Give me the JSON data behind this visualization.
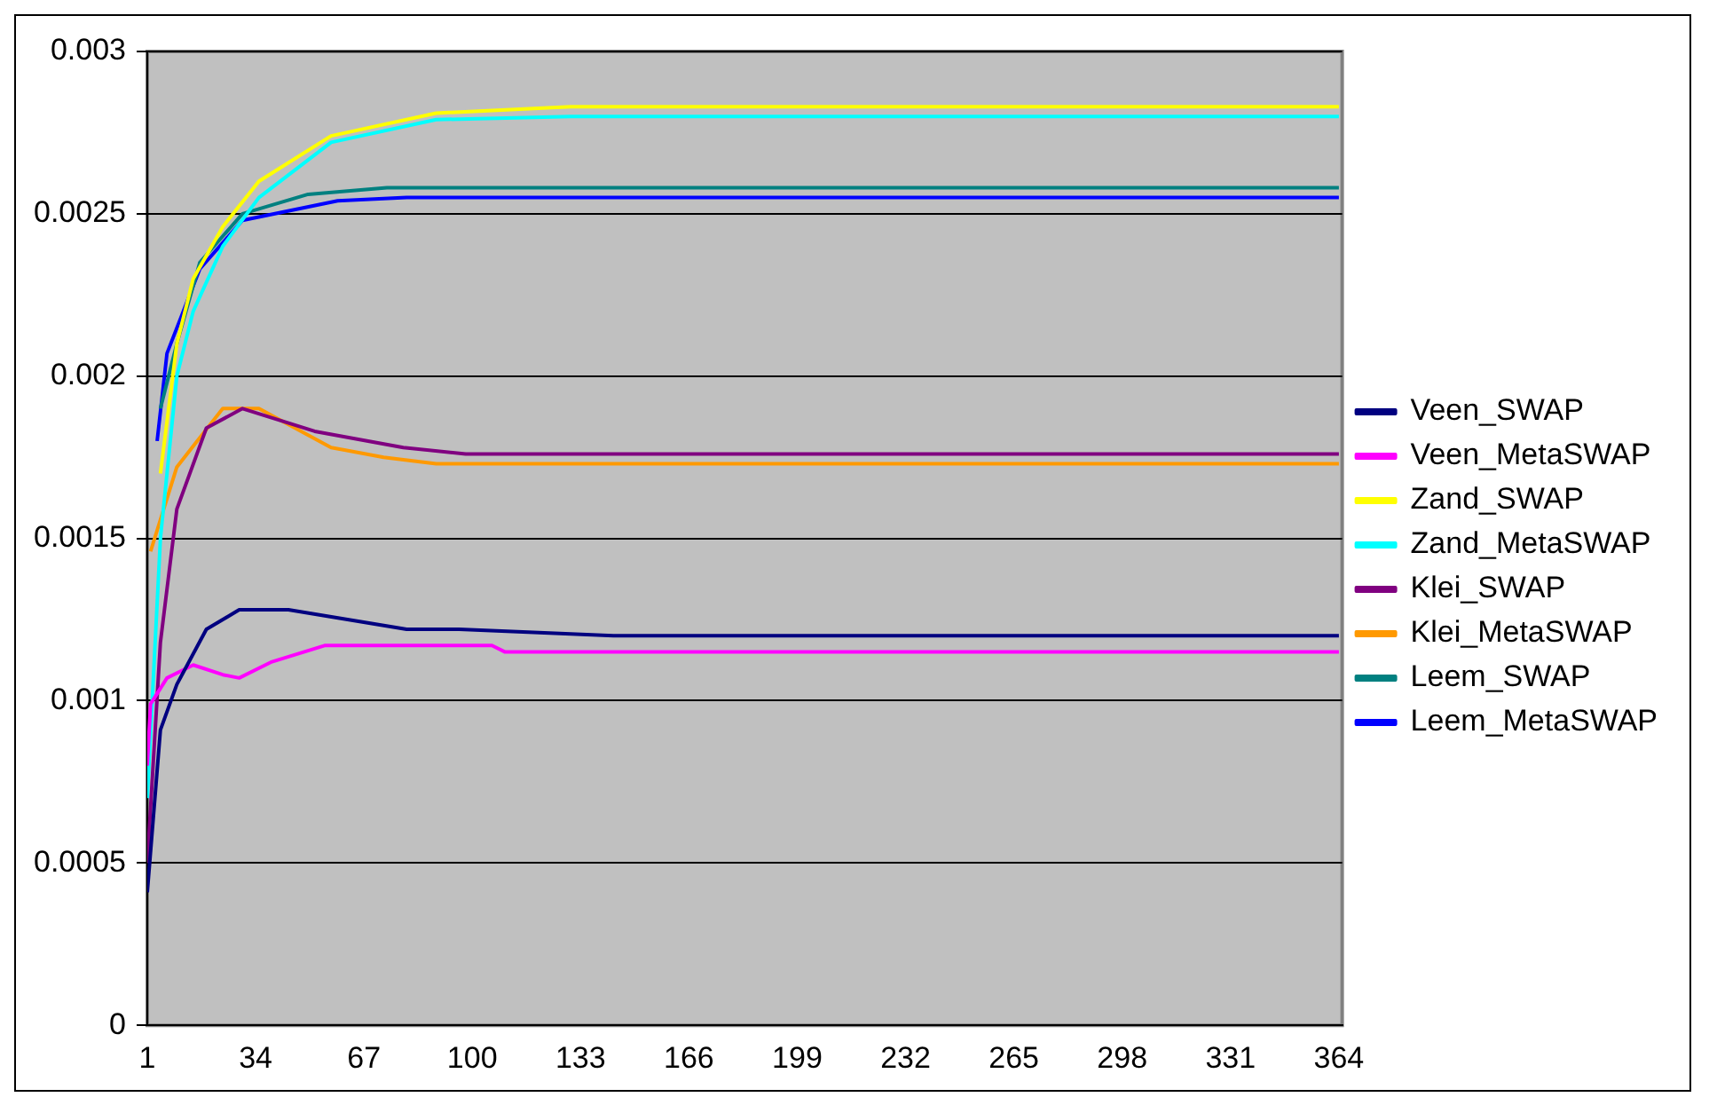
{
  "chart_data": {
    "type": "line",
    "xlim": [
      1,
      365
    ],
    "xticks": [
      1,
      34,
      67,
      100,
      133,
      166,
      199,
      232,
      265,
      298,
      331,
      364
    ],
    "ylim": [
      0,
      0.003
    ],
    "yticks": [
      0,
      0.0005,
      0.001,
      0.0015,
      0.002,
      0.0025,
      0.003
    ],
    "grid": "y",
    "legend": "right",
    "marker": "none",
    "line_style": "solid",
    "series": [
      {
        "name": "Veen_SWAP",
        "color": "#000080",
        "x": [
          1,
          5,
          10,
          19,
          29,
          44,
          80,
          96,
          143,
          364
        ],
        "values": [
          0.00041,
          0.00091,
          0.00105,
          0.00122,
          0.00128,
          0.00128,
          0.00122,
          0.00122,
          0.0012,
          0.0012
        ]
      },
      {
        "name": "Veen_MetaSWAP",
        "color": "#ff00ff",
        "x": [
          1,
          2,
          7,
          15,
          24,
          29,
          39,
          55,
          106,
          110,
          364
        ],
        "values": [
          0.0008,
          0.00099,
          0.00107,
          0.00111,
          0.00108,
          0.00107,
          0.00112,
          0.00117,
          0.00117,
          0.00115,
          0.00115
        ]
      },
      {
        "name": "Zand_SWAP",
        "color": "#ffff00",
        "x": [
          5,
          10,
          15,
          24,
          35,
          57,
          89,
          130,
          364
        ],
        "values": [
          0.0017,
          0.0021,
          0.0023,
          0.00246,
          0.0026,
          0.00274,
          0.00281,
          0.00283,
          0.00283
        ]
      },
      {
        "name": "Zand_MetaSWAP",
        "color": "#00ffff",
        "x": [
          1,
          5,
          10,
          15,
          24,
          35,
          57,
          89,
          130,
          364
        ],
        "values": [
          0.0007,
          0.0015,
          0.002,
          0.0022,
          0.0024,
          0.00255,
          0.00272,
          0.00279,
          0.0028,
          0.0028
        ]
      },
      {
        "name": "Klei_SWAP",
        "color": "#800080",
        "x": [
          1,
          5,
          10,
          19,
          30,
          52,
          79,
          98,
          364
        ],
        "values": [
          0.0005,
          0.00118,
          0.00159,
          0.00184,
          0.0019,
          0.00183,
          0.00178,
          0.00176,
          0.00176
        ]
      },
      {
        "name": "Klei_MetaSWAP",
        "color": "#ff9900",
        "x": [
          2,
          10,
          24,
          35,
          57,
          73,
          89,
          364
        ],
        "values": [
          0.00146,
          0.00172,
          0.0019,
          0.0019,
          0.00178,
          0.00175,
          0.00173,
          0.00173
        ]
      },
      {
        "name": "Leem_SWAP",
        "color": "#008080",
        "x": [
          5,
          10,
          17,
          30,
          50,
          74,
          364
        ],
        "values": [
          0.0019,
          0.0021,
          0.00235,
          0.0025,
          0.00256,
          0.00258,
          0.00258
        ]
      },
      {
        "name": "Leem_MetaSWAP",
        "color": "#0000ff",
        "x": [
          4,
          7,
          17,
          30,
          59,
          80,
          364
        ],
        "values": [
          0.0018,
          0.00207,
          0.00233,
          0.00248,
          0.00254,
          0.00255,
          0.00255
        ]
      }
    ]
  }
}
